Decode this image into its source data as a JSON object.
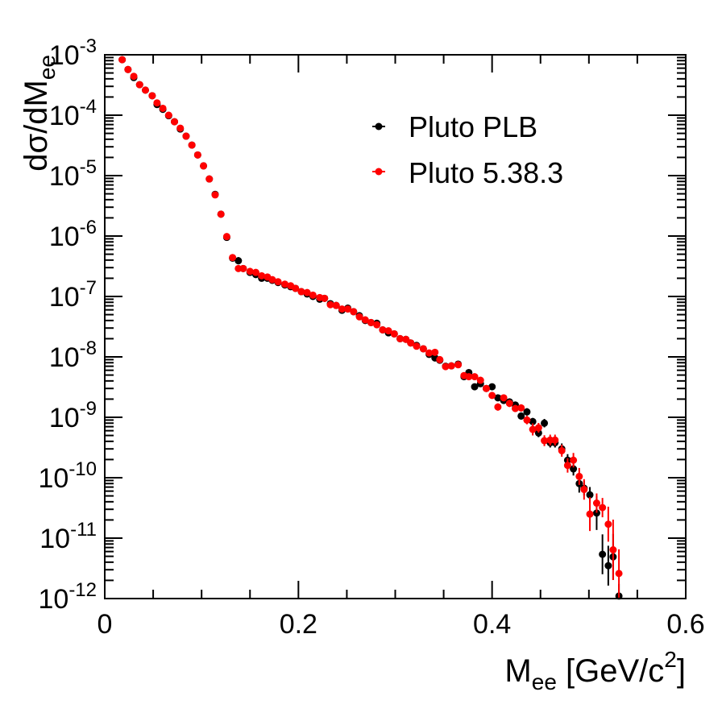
{
  "chart_data": {
    "type": "scatter",
    "title": "",
    "xlabel": "M",
    "xlabel_sub": "ee",
    "xlabel_tail": " [GeV/c",
    "xlabel_sup": "2",
    "xlabel_end": "]",
    "ylabel": "dσ/dM",
    "ylabel_sub": "ee",
    "xlim": [
      0,
      0.6
    ],
    "ylim": [
      1e-12,
      0.001
    ],
    "yscale": "log",
    "grid": false,
    "legend_position": "top-right",
    "x_ticks": [
      "0",
      "0.2",
      "0.4",
      "0.6"
    ],
    "y_tick_base": "10",
    "y_tick_exponents": [
      "-3",
      "-4",
      "-5",
      "-6",
      "-7",
      "-8",
      "-9",
      "-10",
      "-11",
      "-12"
    ],
    "point_format": [
      "x",
      "y",
      "error_in_decades"
    ],
    "series": [
      {
        "name": "Pluto PLB",
        "color": "#000000",
        "points": [
          [
            0.018,
            0.00083,
            0.02
          ],
          [
            0.024,
            0.00057,
            0.02
          ],
          [
            0.03,
            0.00042,
            0.02
          ],
          [
            0.036,
            0.00032,
            0.02
          ],
          [
            0.042,
            0.00026,
            0.02
          ],
          [
            0.049,
            0.00021,
            0.02
          ],
          [
            0.054,
            0.00015,
            0.02
          ],
          [
            0.06,
            0.000125,
            0.02
          ],
          [
            0.066,
            9.8e-05,
            0.02
          ],
          [
            0.072,
            7.8e-05,
            0.02
          ],
          [
            0.078,
            5.9e-05,
            0.02
          ],
          [
            0.084,
            4.5e-05,
            0.02
          ],
          [
            0.09,
            3.2e-05,
            0.02
          ],
          [
            0.096,
            2.2e-05,
            0.02
          ],
          [
            0.102,
            1.45e-05,
            0.02
          ],
          [
            0.108,
            8.8e-06,
            0.02
          ],
          [
            0.114,
            4.9e-06,
            0.02
          ],
          [
            0.12,
            2.3e-06,
            0.02
          ],
          [
            0.126,
            9.5e-07,
            0.02
          ],
          [
            0.132,
            4.3e-07,
            0.02
          ],
          [
            0.138,
            3.9e-07,
            0.06
          ],
          [
            0.143,
            2.9e-07,
            0.02
          ],
          [
            0.15,
            2.5e-07,
            0.02
          ],
          [
            0.156,
            2.3e-07,
            0.02
          ],
          [
            0.162,
            2e-07,
            0.02
          ],
          [
            0.168,
            2e-07,
            0.02
          ],
          [
            0.173,
            1.85e-07,
            0.02
          ],
          [
            0.179,
            1.7e-07,
            0.02
          ],
          [
            0.186,
            1.55e-07,
            0.02
          ],
          [
            0.192,
            1.45e-07,
            0.02
          ],
          [
            0.197,
            1.36e-07,
            0.02
          ],
          [
            0.203,
            1.2e-07,
            0.02
          ],
          [
            0.209,
            1.1e-07,
            0.02
          ],
          [
            0.215,
            1e-07,
            0.02
          ],
          [
            0.222,
            9e-08,
            0.02
          ],
          [
            0.227,
            9.3e-08,
            0.02
          ],
          [
            0.233,
            7.6e-08,
            0.02
          ],
          [
            0.239,
            7.1e-08,
            0.02
          ],
          [
            0.245,
            5.9e-08,
            0.02
          ],
          [
            0.251,
            6.4e-08,
            0.02
          ],
          [
            0.257,
            5.6e-08,
            0.02
          ],
          [
            0.263,
            4.8e-08,
            0.02
          ],
          [
            0.269,
            4e-08,
            0.02
          ],
          [
            0.275,
            3.7e-08,
            0.02
          ],
          [
            0.281,
            3.6e-08,
            0.02
          ],
          [
            0.287,
            2.8e-08,
            0.02
          ],
          [
            0.293,
            2.5e-08,
            0.02
          ],
          [
            0.299,
            2.4e-08,
            0.02
          ],
          [
            0.305,
            2e-08,
            0.02
          ],
          [
            0.311,
            1.95e-08,
            0.02
          ],
          [
            0.316,
            1.7e-08,
            0.02
          ],
          [
            0.322,
            1.55e-08,
            0.02
          ],
          [
            0.329,
            1.36e-08,
            0.02
          ],
          [
            0.335,
            1.1e-08,
            0.02
          ],
          [
            0.341,
            9.6e-09,
            0.03
          ],
          [
            0.346,
            8.8e-09,
            0.03
          ],
          [
            0.352,
            7e-09,
            0.03
          ],
          [
            0.358,
            7.1e-09,
            0.03
          ],
          [
            0.365,
            7.6e-09,
            0.03
          ],
          [
            0.371,
            4.7e-09,
            0.03
          ],
          [
            0.376,
            5.5e-09,
            0.04
          ],
          [
            0.382,
            3.2e-09,
            0.04
          ],
          [
            0.388,
            3.6e-09,
            0.04
          ],
          [
            0.394,
            3e-09,
            0.04
          ],
          [
            0.4,
            3.2e-09,
            0.04
          ],
          [
            0.406,
            2.1e-09,
            0.05
          ],
          [
            0.412,
            1.9e-09,
            0.05
          ],
          [
            0.418,
            1.8e-09,
            0.05
          ],
          [
            0.424,
            1.6e-09,
            0.05
          ],
          [
            0.43,
            1.05e-09,
            0.06
          ],
          [
            0.436,
            1.23e-09,
            0.06
          ],
          [
            0.442,
            8.5e-10,
            0.06
          ],
          [
            0.448,
            5.5e-10,
            0.07
          ],
          [
            0.454,
            8e-10,
            0.07
          ],
          [
            0.46,
            3.8e-10,
            0.08
          ],
          [
            0.465,
            3.8e-10,
            0.08
          ],
          [
            0.472,
            3e-10,
            0.09
          ],
          [
            0.478,
            1.95e-10,
            0.1
          ],
          [
            0.484,
            1.4e-10,
            0.11
          ],
          [
            0.49,
            8e-11,
            0.15
          ],
          [
            0.495,
            6.7e-11,
            0.12
          ],
          [
            0.501,
            5.2e-11,
            0.13
          ],
          [
            0.508,
            2.6e-11,
            0.28
          ],
          [
            0.514,
            5.4e-12,
            0.33
          ],
          [
            0.52,
            3.5e-12,
            0.33
          ],
          [
            0.525,
            4.9e-12,
            0.38
          ],
          [
            0.531,
            1.1e-12,
            0.2
          ]
        ]
      },
      {
        "name": "Pluto 5.38.3",
        "color": "#ff0000",
        "points": [
          [
            0.018,
            0.00083,
            0.02
          ],
          [
            0.024,
            0.00057,
            0.02
          ],
          [
            0.03,
            0.00044,
            0.02
          ],
          [
            0.036,
            0.00032,
            0.02
          ],
          [
            0.042,
            0.00026,
            0.02
          ],
          [
            0.049,
            0.00021,
            0.02
          ],
          [
            0.054,
            0.00016,
            0.02
          ],
          [
            0.06,
            0.00013,
            0.02
          ],
          [
            0.066,
            0.0001,
            0.02
          ],
          [
            0.072,
            7.8e-05,
            0.02
          ],
          [
            0.078,
            6.1e-05,
            0.02
          ],
          [
            0.084,
            4.5e-05,
            0.02
          ],
          [
            0.09,
            3.2e-05,
            0.02
          ],
          [
            0.096,
            2.2e-05,
            0.02
          ],
          [
            0.102,
            1.45e-05,
            0.02
          ],
          [
            0.108,
            8.8e-06,
            0.02
          ],
          [
            0.114,
            4.8e-06,
            0.02
          ],
          [
            0.12,
            2.3e-06,
            0.02
          ],
          [
            0.126,
            9.8e-07,
            0.02
          ],
          [
            0.132,
            4.4e-07,
            0.02
          ],
          [
            0.138,
            2.9e-07,
            0.02
          ],
          [
            0.143,
            2.9e-07,
            0.02
          ],
          [
            0.15,
            2.6e-07,
            0.02
          ],
          [
            0.156,
            2.5e-07,
            0.02
          ],
          [
            0.162,
            2.2e-07,
            0.02
          ],
          [
            0.168,
            2.1e-07,
            0.02
          ],
          [
            0.173,
            1.9e-07,
            0.02
          ],
          [
            0.179,
            1.75e-07,
            0.02
          ],
          [
            0.186,
            1.6e-07,
            0.02
          ],
          [
            0.192,
            1.5e-07,
            0.02
          ],
          [
            0.197,
            1.36e-07,
            0.02
          ],
          [
            0.203,
            1.2e-07,
            0.02
          ],
          [
            0.209,
            1.16e-07,
            0.02
          ],
          [
            0.215,
            1.05e-07,
            0.02
          ],
          [
            0.222,
            9.6e-08,
            0.02
          ],
          [
            0.227,
            9.3e-08,
            0.02
          ],
          [
            0.233,
            7.3e-08,
            0.02
          ],
          [
            0.239,
            7.1e-08,
            0.02
          ],
          [
            0.245,
            6.2e-08,
            0.02
          ],
          [
            0.251,
            6.2e-08,
            0.02
          ],
          [
            0.257,
            5.6e-08,
            0.02
          ],
          [
            0.263,
            4.6e-08,
            0.02
          ],
          [
            0.269,
            4.1e-08,
            0.02
          ],
          [
            0.275,
            3.7e-08,
            0.02
          ],
          [
            0.281,
            3.4e-08,
            0.02
          ],
          [
            0.287,
            2.8e-08,
            0.02
          ],
          [
            0.293,
            2.7e-08,
            0.02
          ],
          [
            0.299,
            2.4e-08,
            0.02
          ],
          [
            0.305,
            2e-08,
            0.02
          ],
          [
            0.311,
            1.95e-08,
            0.02
          ],
          [
            0.316,
            1.7e-08,
            0.02
          ],
          [
            0.322,
            1.5e-08,
            0.02
          ],
          [
            0.329,
            1.36e-08,
            0.02
          ],
          [
            0.335,
            1.16e-08,
            0.02
          ],
          [
            0.341,
            1.19e-08,
            0.03
          ],
          [
            0.346,
            9e-09,
            0.03
          ],
          [
            0.352,
            6.9e-09,
            0.03
          ],
          [
            0.358,
            7.1e-09,
            0.03
          ],
          [
            0.365,
            7.4e-09,
            0.03
          ],
          [
            0.371,
            4.9e-09,
            0.03
          ],
          [
            0.376,
            4.7e-09,
            0.04
          ],
          [
            0.382,
            4.7e-09,
            0.04
          ],
          [
            0.388,
            4.1e-09,
            0.04
          ],
          [
            0.394,
            3e-09,
            0.04
          ],
          [
            0.4,
            2.3e-09,
            0.05
          ],
          [
            0.406,
            1.48e-09,
            0.06
          ],
          [
            0.412,
            2.1e-09,
            0.05
          ],
          [
            0.418,
            1.7e-09,
            0.06
          ],
          [
            0.424,
            1.4e-09,
            0.06
          ],
          [
            0.43,
            1.43e-09,
            0.06
          ],
          [
            0.436,
            9e-10,
            0.07
          ],
          [
            0.442,
            6.3e-10,
            0.1
          ],
          [
            0.448,
            6.7e-10,
            0.08
          ],
          [
            0.454,
            4.1e-10,
            0.09
          ],
          [
            0.46,
            4.2e-10,
            0.09
          ],
          [
            0.465,
            4.2e-10,
            0.09
          ],
          [
            0.472,
            2.8e-10,
            0.1
          ],
          [
            0.478,
            1.6e-10,
            0.12
          ],
          [
            0.484,
            1.95e-10,
            0.12
          ],
          [
            0.49,
            1.05e-10,
            0.14
          ],
          [
            0.495,
            6.4e-11,
            0.17
          ],
          [
            0.501,
            2.5e-11,
            0.28
          ],
          [
            0.508,
            3.8e-11,
            0.16
          ],
          [
            0.514,
            3.2e-11,
            0.16
          ],
          [
            0.52,
            1.7e-11,
            0.29
          ],
          [
            0.525,
            6.4e-12,
            0.5
          ],
          [
            0.531,
            2.6e-12,
            0.4
          ]
        ]
      }
    ]
  }
}
